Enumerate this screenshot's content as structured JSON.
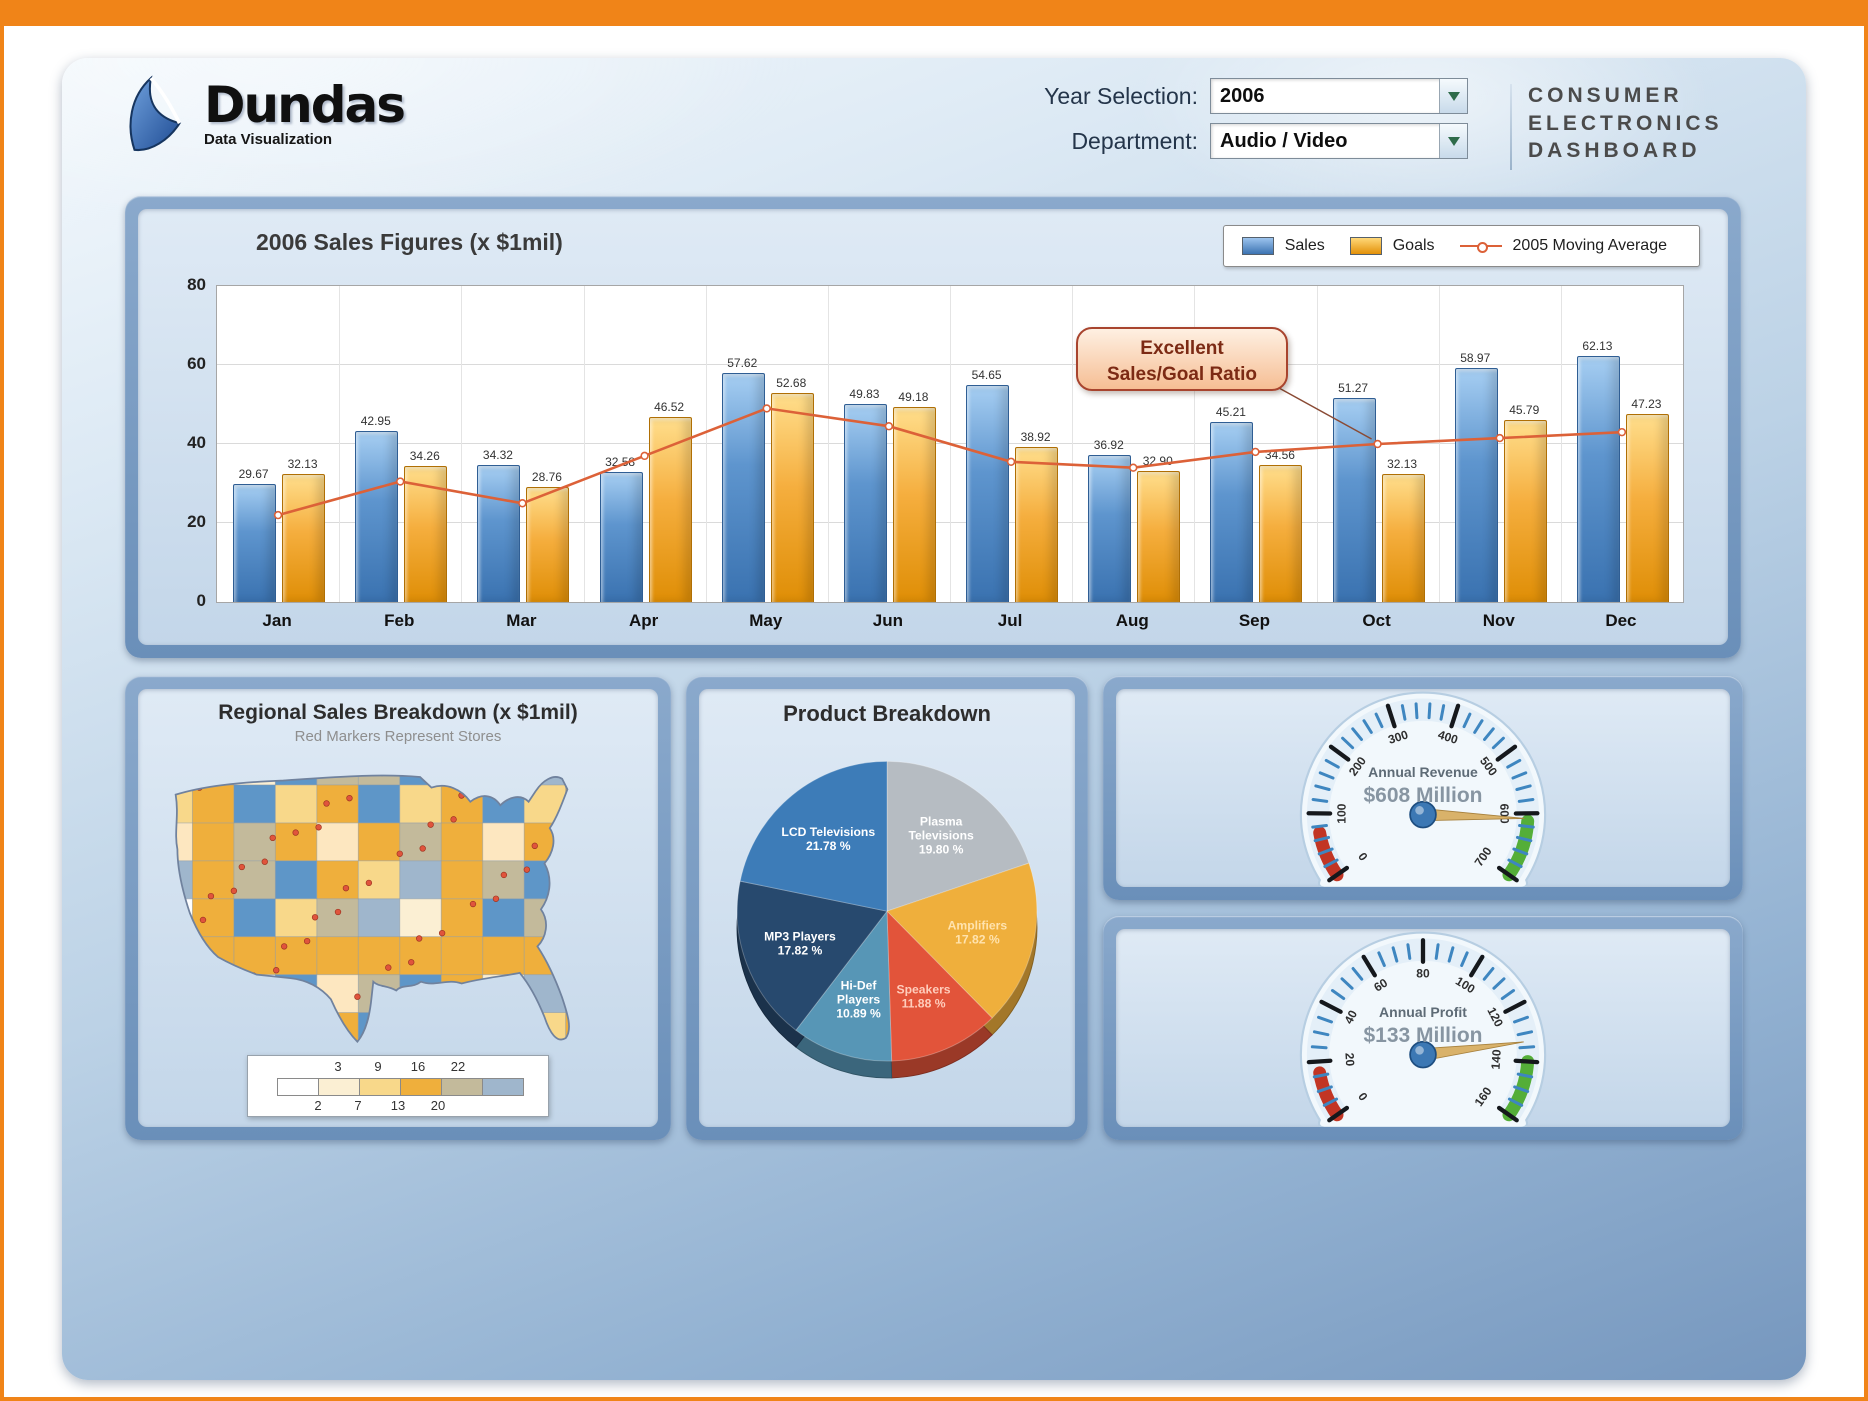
{
  "page": {
    "frame_color": "#F08418"
  },
  "header": {
    "logo_title": "Dundas",
    "logo_subtitle": "Data Visualization",
    "year_label": "Year Selection:",
    "year_value": "2006",
    "department_label": "Department:",
    "department_value": "Audio / Video",
    "app_title_lines": [
      "CONSUMER",
      "ELECTRONICS",
      "DASHBOARD"
    ]
  },
  "chart_data": [
    {
      "id": "sales_figures_2006",
      "type": "bar",
      "title": "2006 Sales Figures (x $1mil)",
      "categories": [
        "Jan",
        "Feb",
        "Mar",
        "Apr",
        "May",
        "Jun",
        "Jul",
        "Aug",
        "Sep",
        "Oct",
        "Nov",
        "Dec"
      ],
      "series": [
        {
          "name": "Sales",
          "color": "#4E86C2",
          "values": [
            29.67,
            42.95,
            34.32,
            32.58,
            57.62,
            49.83,
            54.65,
            36.92,
            45.21,
            51.27,
            58.97,
            62.13
          ]
        },
        {
          "name": "Goals",
          "color": "#F2A83C",
          "values": [
            32.13,
            34.26,
            28.76,
            46.52,
            52.68,
            49.18,
            38.92,
            32.9,
            34.56,
            32.13,
            45.79,
            47.23
          ]
        }
      ],
      "line_series": {
        "name": "2005 Moving Average",
        "color": "#DC6138",
        "values": [
          22,
          30.5,
          25,
          37,
          49,
          44.5,
          35.5,
          34,
          38,
          40,
          41.5,
          43
        ]
      },
      "ylim": [
        0,
        80
      ],
      "yticks": [
        0,
        20,
        40,
        60,
        80
      ],
      "grid": true,
      "legend_position": "top-right",
      "annotation": {
        "lines": [
          "Excellent",
          "Sales/Goal Ratio"
        ],
        "anchor_month": "Oct",
        "anchor_value": 40
      }
    },
    {
      "id": "product_breakdown",
      "type": "pie",
      "title": "Product Breakdown",
      "slices": [
        {
          "label": "Plasma Televisions",
          "value": 19.8,
          "label_lines": [
            "Plasma",
            "Televisions",
            "19.80 %"
          ],
          "color": "#B6BCC2",
          "text_color": "#FFFFFF"
        },
        {
          "label": "Amplifiers",
          "value": 17.82,
          "label_lines": [
            "Amplifiers",
            "17.82 %"
          ],
          "color": "#EFAF3C",
          "text_color": "#FFE3AE"
        },
        {
          "label": "Speakers",
          "value": 11.88,
          "label_lines": [
            "Speakers",
            "11.88 %"
          ],
          "color": "#E2543A",
          "text_color": "#FFCDBC"
        },
        {
          "label": "Hi-Def Players",
          "value": 10.89,
          "label_lines": [
            "Hi-Def",
            "Players",
            "10.89 %"
          ],
          "color": "#5796B6",
          "text_color": "#FFFFFF"
        },
        {
          "label": "MP3 Players",
          "value": 17.82,
          "label_lines": [
            "MP3 Players",
            "17.82 %"
          ],
          "color": "#27496E",
          "text_color": "#FFFFFF"
        },
        {
          "label": "LCD Televisions",
          "value": 21.78,
          "label_lines": [
            "LCD Televisions",
            "21.78 %"
          ],
          "color": "#3D7CB8",
          "text_color": "#FFFFFF"
        }
      ]
    },
    {
      "id": "regional_sales_map",
      "type": "heatmap",
      "title": "Regional Sales Breakdown (x $1mil)",
      "subtitle": "Red Markers Represent Stores",
      "legend": {
        "top_labels": [
          "3",
          "9",
          "16",
          "22"
        ],
        "bottom_labels": [
          "2",
          "7",
          "13",
          "20"
        ],
        "colors": [
          "#FFFFFF",
          "#FBEFD3",
          "#F8D88A",
          "#EFAF3C",
          "#C3BA9B",
          "#9FB6CC"
        ]
      },
      "marker_color": "#E0543C",
      "palette": [
        "#5E96C8",
        "#EFAF3C",
        "#FBEFD3",
        "#9FB6CC",
        "#C3BA9B",
        "#F8D88A",
        "#5E96C8",
        "#EFAF3C",
        "#FFFFFF",
        "#5E96C8",
        "#FDE7C0",
        "#C3BA9B"
      ]
    },
    {
      "id": "annual_revenue_gauge",
      "type": "gauge",
      "title": "Annual Revenue",
      "value_text": "$608 Million",
      "value": 608,
      "min": 0,
      "max": 700,
      "major_step": 100,
      "minor_per_major": 5,
      "zones": [
        {
          "from": 0,
          "to": 70,
          "color": "#C23524"
        },
        {
          "from": 612,
          "to": 700,
          "color": "#54AE38"
        }
      ]
    },
    {
      "id": "annual_profit_gauge",
      "type": "gauge",
      "title": "Annual Profit",
      "value_text": "$133 Million",
      "value": 133,
      "min": 0,
      "max": 160,
      "major_step": 20,
      "minor_per_major": 4,
      "zones": [
        {
          "from": 0,
          "to": 16,
          "color": "#C23524"
        },
        {
          "from": 140,
          "to": 160,
          "color": "#54AE38"
        }
      ]
    }
  ]
}
